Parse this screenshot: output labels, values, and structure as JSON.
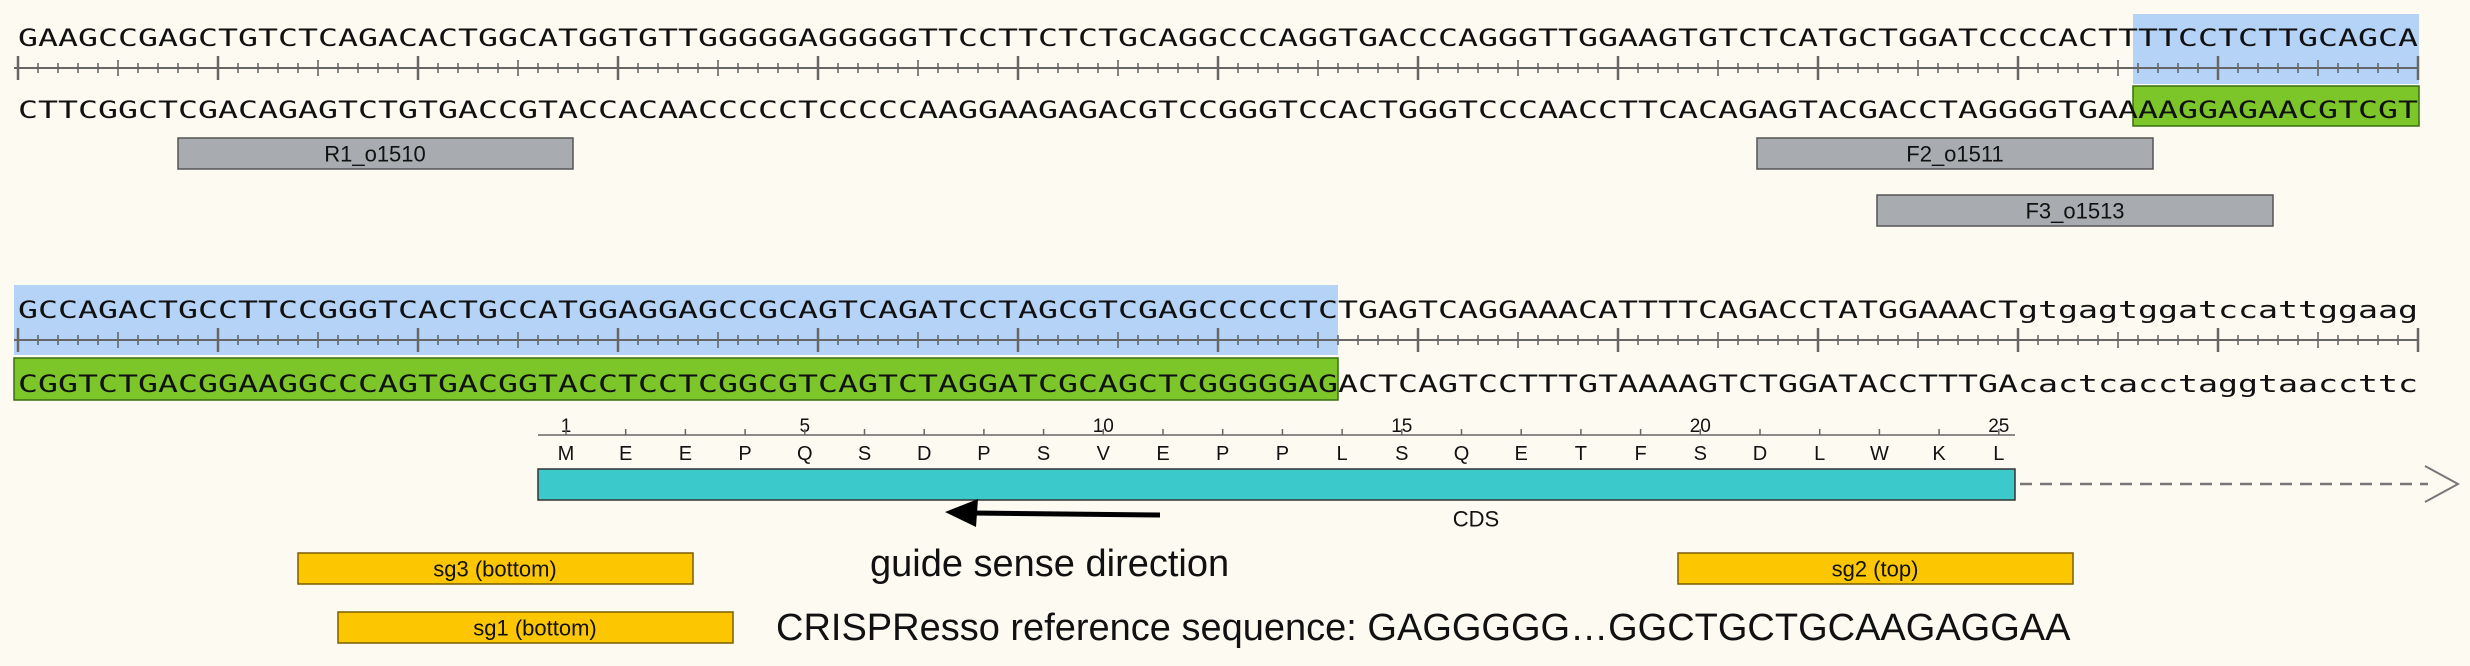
{
  "sequence_rows": [
    {
      "top": "GAAGCCGAGCTGTCTCAGACACTGGCATGGTGTTGGGGGAGGGGGTTCCTTCTCTGCAGGCCCAGGTGACCCAGGGTTGGAAGTGTCTCATGCTGGATCCCCACTTTTCCTCTTGCAGCA",
      "bottom": "CTTCGGCTCGACAGAGTCTGTGACCGTACCACAACCCCCTCCCCCAAGGAAGAGACGTCCGGGTCCACTGGGTCCCAACCTTCACAGAGTACGACCTAGGGGTGAAAAGGAGAACGTCGT"
    },
    {
      "top": "GCCAGACTGCCTTCCGGGTCACTGCCATGGAGGAGCCGCAGTCAGATCCTAGCGTCGAGCCCCCTCTGAGTCAGGAAACATTTTCAGACCTATGGAAACTgtgagtggatccattggaag",
      "bottom": "CGGTCTGACGGAAGGCCCAGTGACGGTACCTCCTCGGCGTCAGTCTAGGATCGCAGCTCGGGGGAGACTCAGTCCTTTGTAAAAGTCTGGATACCTTTGAcactcacctaggtaaccttc"
    }
  ],
  "primers": [
    {
      "label": "R1_o1510"
    },
    {
      "label": "F2_o1511"
    },
    {
      "label": "F3_o1513"
    }
  ],
  "guides": [
    {
      "label": "sg3 (bottom)"
    },
    {
      "label": "sg2 (top)"
    },
    {
      "label": "sg1 (bottom)"
    }
  ],
  "cds": {
    "label": "CDS",
    "amino_acids": [
      "M",
      "E",
      "E",
      "P",
      "Q",
      "S",
      "D",
      "P",
      "S",
      "V",
      "E",
      "P",
      "P",
      "L",
      "S",
      "Q",
      "E",
      "T",
      "F",
      "S",
      "D",
      "L",
      "W",
      "K",
      "L"
    ],
    "numbers": [
      "1",
      "5",
      "10",
      "15",
      "20",
      "25"
    ]
  },
  "annotations": {
    "direction_note": "guide sense direction",
    "reference_note": "CRISPResso reference sequence: GAGGGGG…GGCTGCTGCAAGAGGAA"
  },
  "colors": {
    "background": "#fdfaf2",
    "highlight_top": "#b5d3f6",
    "highlight_bottom": "#7cc62a",
    "primer": "#a8abaf",
    "guide": "#fcc700",
    "cds": "#3cc9cb",
    "ruler": "#666666"
  }
}
